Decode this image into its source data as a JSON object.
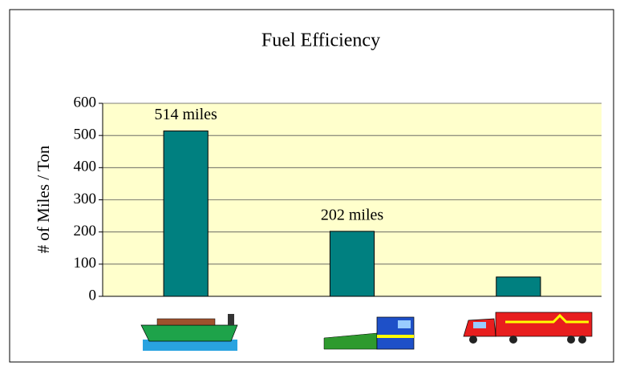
{
  "chart_data": {
    "type": "bar",
    "title": "Fuel Efficiency",
    "y_label": "# of Miles / Ton",
    "categories": [
      null,
      null,
      null
    ],
    "values": [
      514,
      202,
      60
    ],
    "value_labels": [
      "514 miles",
      "202 miles",
      null
    ],
    "color": "#008080",
    "ylim": [
      0,
      600
    ],
    "yticks": [
      0,
      100,
      200,
      300,
      400,
      500,
      600
    ],
    "grid": true
  }
}
